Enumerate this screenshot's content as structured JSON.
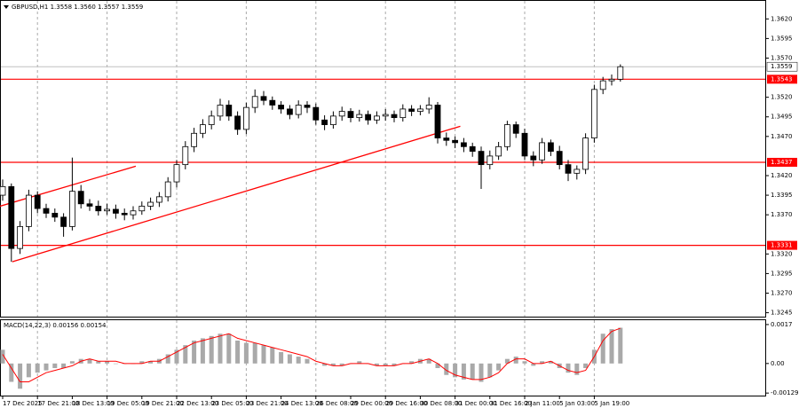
{
  "chart_data": [
    {
      "type": "candlestick",
      "title": "GBPUSD,H1 1.3558 1.3560 1.3557 1.3559",
      "categories": [
        "17 Dec 2025",
        null,
        null,
        null,
        "17 Dec 21:00",
        null,
        null,
        null,
        "18 Dec 13:00",
        null,
        null,
        null,
        "19 Dec 05:00",
        null,
        null,
        null,
        "19 Dec 21:00",
        null,
        null,
        null,
        "22 Dec 13:00",
        null,
        null,
        null,
        "23 Dec 05:00",
        null,
        null,
        null,
        "23 Dec 21:00",
        null,
        null,
        null,
        "24 Dec 13:00",
        null,
        null,
        null,
        "26 Dec 08:00",
        null,
        null,
        null,
        "29 Dec 00:00",
        null,
        null,
        null,
        "29 Dec 16:00",
        null,
        null,
        null,
        "30 Dec 08:00",
        null,
        null,
        null,
        "31 Dec 00:00",
        null,
        null,
        null,
        "31 Dec 16:00",
        null,
        null,
        null,
        "2 Jan 11:00",
        null,
        null,
        null,
        "5 Jan 03:00",
        null,
        null,
        null,
        "5 Jan 19:00",
        null,
        null,
        null
      ],
      "open": [
        1.3395,
        1.3406,
        1.3327,
        1.3355,
        1.3395,
        1.3378,
        1.3372,
        1.3367,
        1.3355,
        1.34,
        1.3384,
        1.3381,
        1.3375,
        1.3377,
        1.3372,
        1.337,
        1.3375,
        1.3381,
        1.3386,
        1.3393,
        1.3412,
        1.3434,
        1.3457,
        1.3474,
        1.3485,
        1.3496,
        1.351,
        1.3496,
        1.3479,
        1.3507,
        1.3521,
        1.3516,
        1.351,
        1.3505,
        1.3498,
        1.351,
        1.3507,
        1.3491,
        1.3485,
        1.3496,
        1.3502,
        1.3494,
        1.3498,
        1.3491,
        1.3496,
        1.3498,
        1.3494,
        1.3505,
        1.3502,
        1.3505,
        1.351,
        1.3468,
        1.3465,
        1.3462,
        1.3457,
        1.3451,
        1.3434,
        1.3445,
        1.3457,
        1.3485,
        1.3474,
        1.3445,
        1.344,
        1.3462,
        1.3451,
        1.3434,
        1.3423,
        1.3428,
        1.3468,
        1.353,
        1.3541,
        1.3543
      ],
      "high": [
        1.3415,
        1.341,
        1.3362,
        1.3402,
        1.34,
        1.3384,
        1.3378,
        1.3372,
        1.3443,
        1.3408,
        1.339,
        1.3388,
        1.3384,
        1.3383,
        1.3378,
        1.3381,
        1.3387,
        1.3392,
        1.3399,
        1.3418,
        1.344,
        1.3464,
        1.3481,
        1.3492,
        1.3503,
        1.3518,
        1.3516,
        1.3502,
        1.3513,
        1.353,
        1.3528,
        1.3521,
        1.3515,
        1.351,
        1.3516,
        1.3515,
        1.3512,
        1.3497,
        1.3502,
        1.3508,
        1.3506,
        1.3504,
        1.3503,
        1.3502,
        1.3505,
        1.3503,
        1.3511,
        1.351,
        1.351,
        1.352,
        1.3514,
        1.3475,
        1.347,
        1.3468,
        1.3462,
        1.3457,
        1.3452,
        1.3463,
        1.349,
        1.3489,
        1.348,
        1.3451,
        1.3468,
        1.3466,
        1.3458,
        1.344,
        1.3433,
        1.3474,
        1.3536,
        1.3546,
        1.3549,
        1.3562
      ],
      "low": [
        1.3388,
        1.331,
        1.332,
        1.3349,
        1.3372,
        1.3366,
        1.3361,
        1.3342,
        1.335,
        1.3378,
        1.3375,
        1.3369,
        1.337,
        1.3365,
        1.3363,
        1.3364,
        1.337,
        1.3376,
        1.338,
        1.3387,
        1.3405,
        1.3428,
        1.345,
        1.3468,
        1.3479,
        1.349,
        1.349,
        1.3472,
        1.3473,
        1.35,
        1.351,
        1.3504,
        1.3499,
        1.3492,
        1.3493,
        1.35,
        1.3485,
        1.3478,
        1.348,
        1.349,
        1.3488,
        1.3489,
        1.3485,
        1.3486,
        1.349,
        1.3488,
        1.3489,
        1.3496,
        1.3497,
        1.3499,
        1.3461,
        1.3458,
        1.3455,
        1.345,
        1.3444,
        1.3403,
        1.3428,
        1.344,
        1.3452,
        1.3468,
        1.344,
        1.3432,
        1.3435,
        1.3445,
        1.3428,
        1.3413,
        1.3415,
        1.3422,
        1.3462,
        1.3524,
        1.3535,
        1.354
      ],
      "close": [
        1.3406,
        1.3327,
        1.3355,
        1.3395,
        1.3378,
        1.3372,
        1.3367,
        1.3355,
        1.34,
        1.3384,
        1.3381,
        1.3375,
        1.3377,
        1.3372,
        1.337,
        1.3375,
        1.3381,
        1.3386,
        1.3393,
        1.3412,
        1.3434,
        1.3457,
        1.3474,
        1.3485,
        1.3496,
        1.351,
        1.3496,
        1.3479,
        1.3507,
        1.3521,
        1.3516,
        1.351,
        1.3505,
        1.3498,
        1.351,
        1.3507,
        1.3491,
        1.3485,
        1.3496,
        1.3502,
        1.3494,
        1.3498,
        1.3491,
        1.3496,
        1.3498,
        1.3494,
        1.3505,
        1.3502,
        1.3505,
        1.351,
        1.3468,
        1.3465,
        1.3462,
        1.3457,
        1.3451,
        1.3434,
        1.3445,
        1.3457,
        1.3485,
        1.3474,
        1.3445,
        1.344,
        1.3462,
        1.3451,
        1.3434,
        1.3423,
        1.3428,
        1.3468,
        1.353,
        1.3541,
        1.3543,
        1.3559
      ],
      "ylim": [
        1.324,
        1.3643
      ],
      "yticks": [
        {
          "value": 1.362,
          "label": "1.3620"
        },
        1.3595,
        {
          "value": 1.357,
          "label": "1.3570"
        },
        {
          "value": 1.352,
          "label": "1.3520"
        },
        1.3495,
        {
          "value": 1.347,
          "label": "1.3470"
        },
        {
          "value": 1.342,
          "label": "1.3420"
        },
        1.3395,
        {
          "value": 1.337,
          "label": "1.3370"
        },
        {
          "value": 1.332,
          "label": "1.3320"
        },
        1.3295,
        {
          "value": 1.327,
          "label": "1.3270"
        },
        1.3245
      ],
      "levels": [
        1.3543,
        1.3437,
        1.3331
      ],
      "level_color": "#ff0000",
      "last_price": 1.3559,
      "trendlines": [
        {
          "x": [
            1.1,
            52.6
          ],
          "y": [
            1.331,
            1.3483
          ]
        },
        {
          "x": [
            -0.3,
            15.3
          ],
          "y": [
            1.3381,
            1.3432
          ]
        }
      ],
      "grid": true
    },
    {
      "type": "macd",
      "title": "MACD(14,22,3) 0.00156 0.00154",
      "series": [
        {
          "name": "MACD",
          "color": "#a9a9a9",
          "values": [
            0.0006,
            -0.0008,
            -0.0011,
            -0.0006,
            -0.0004,
            -0.0003,
            -0.0002,
            -0.0002,
            0.0001,
            0.0002,
            0.0002,
            0.0001,
            0.0001,
            0,
            0,
            0,
            0.0001,
            0.0001,
            0.0002,
            0.0004,
            0.0006,
            0.0008,
            0.001,
            0.0011,
            0.0012,
            0.0013,
            0.0013,
            0.001,
            0.0009,
            0.0009,
            0.0008,
            0.0007,
            0.0005,
            0.0004,
            0.0003,
            0.0002,
            0,
            -0.0001,
            -0.0001,
            -0.0001,
            0,
            0.0001,
            0,
            -0.0001,
            -0.0001,
            -0.0001,
            0,
            0.0001,
            0.0002,
            0.0002,
            -0.0002,
            -0.0005,
            -0.0006,
            -0.0007,
            -0.0007,
            -0.0008,
            -0.0006,
            -0.0003,
            0.0002,
            0.0003,
            0.0001,
            -0.0001,
            0.0001,
            0.0001,
            -0.0002,
            -0.0004,
            -0.0005,
            -0.0002,
            0.0006,
            0.0013,
            0.0015,
            0.00156
          ]
        },
        {
          "name": "Signal",
          "color": "#ff0000",
          "values": [
            0.0004,
            -0.0002,
            -0.0008,
            -0.0008,
            -0.0006,
            -0.0004,
            -0.0003,
            -0.0002,
            -0.0001,
            0.0001,
            0.0002,
            0.0001,
            0.0001,
            0.0001,
            0,
            0,
            0,
            0.0001,
            0.0001,
            0.0003,
            0.0005,
            0.0007,
            0.0009,
            0.001,
            0.0011,
            0.0012,
            0.0013,
            0.0011,
            0.001,
            0.0009,
            0.0008,
            0.0007,
            0.0006,
            0.0005,
            0.0004,
            0.0003,
            0.0001,
            0,
            -0.0001,
            -0.0001,
            0,
            0,
            0,
            -0.0001,
            -0.0001,
            -0.0001,
            0,
            0,
            0.0001,
            0.0002,
            0,
            -0.0003,
            -0.0005,
            -0.0006,
            -0.0007,
            -0.0007,
            -0.0006,
            -0.0004,
            0,
            0.0002,
            0.0002,
            0,
            0,
            0.0001,
            -0.0001,
            -0.0003,
            -0.0004,
            -0.0003,
            0.0003,
            0.001,
            0.0014,
            0.00154
          ]
        }
      ],
      "ylim": [
        -0.0014,
        0.00189
      ],
      "yticks": [
        0.0017,
        {
          "value": 0,
          "label": "0.00"
        },
        -0.00129
      ]
    }
  ]
}
